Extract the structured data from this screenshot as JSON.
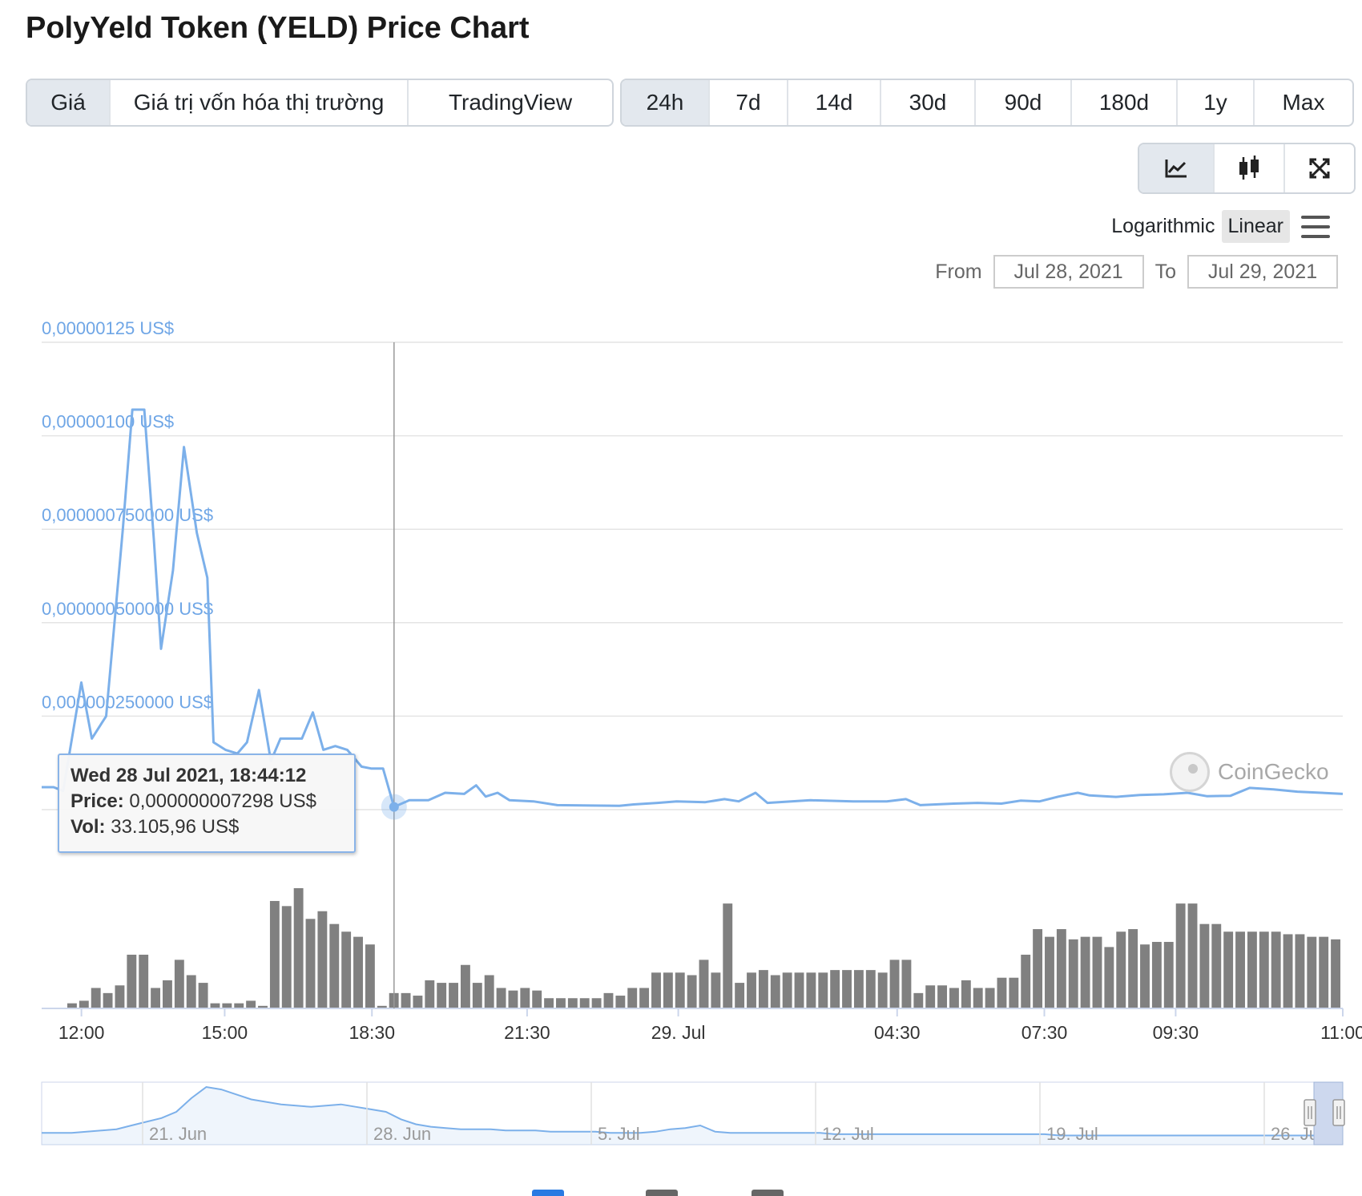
{
  "title": "PolyYeld Token (YELD) Price Chart",
  "tabs": [
    {
      "label": "Giá",
      "active": true
    },
    {
      "label": "Giá trị vốn hóa thị trường",
      "active": false
    },
    {
      "label": "TradingView",
      "active": false
    }
  ],
  "ranges": [
    {
      "label": "24h",
      "active": true
    },
    {
      "label": "7d",
      "active": false
    },
    {
      "label": "14d",
      "active": false
    },
    {
      "label": "30d",
      "active": false
    },
    {
      "label": "90d",
      "active": false
    },
    {
      "label": "180d",
      "active": false
    },
    {
      "label": "1y",
      "active": false
    },
    {
      "label": "Max",
      "active": false
    }
  ],
  "chart_types": [
    {
      "icon": "line-chart-icon",
      "active": true
    },
    {
      "icon": "candlestick-icon",
      "active": false
    },
    {
      "icon": "fullscreen-icon",
      "active": false
    }
  ],
  "scale": {
    "logarithmic": "Logarithmic",
    "linear": "Linear",
    "active": "linear"
  },
  "date_range": {
    "from_label": "From",
    "from_value": "Jul 28, 2021",
    "to_label": "To",
    "to_value": "Jul 29, 2021"
  },
  "tooltip": {
    "title": "Wed 28 Jul 2021, 18:44:12",
    "price_label": "Price:",
    "price_value": "0,000000007298 US$",
    "vol_label": "Vol:",
    "vol_value": "33.105,96 US$"
  },
  "watermark": "CoinGecko",
  "colors": {
    "price_line": "#7cb0ea",
    "volume_bar": "#808080",
    "axis_label": "#6fa6e6",
    "navigator_mask": "#cdd8ee"
  },
  "chart_data": {
    "type": "line",
    "x_unit": "hours since Jul 28, 2021 11:10",
    "ylabel": "",
    "y_ticks": [
      "0,00000125 US$",
      "0,00000100 US$",
      "0,000000750000 US$",
      "0,000000500000 US$",
      "0,000000250000 US$"
    ],
    "y_tick_values": [
      1.25e-06,
      1e-06,
      7.5e-07,
      5e-07,
      2.5e-07
    ],
    "ylim": [
      0,
      1.25e-06
    ],
    "x_ticks": [
      {
        "label": "12:00",
        "x": 0.833
      },
      {
        "label": "15:00",
        "x": 3.833
      },
      {
        "label": "18:30",
        "x": 6.917
      },
      {
        "label": "21:30",
        "x": 10.167
      },
      {
        "label": "29. Jul",
        "x": 13.333
      },
      {
        "label": "04:30",
        "x": 17.917
      },
      {
        "label": "07:30",
        "x": 21.0
      },
      {
        "label": "09:30",
        "x": 23.75
      },
      {
        "label": "11:00",
        "x": 27.25
      }
    ],
    "x_range": [
      0,
      27.25
    ],
    "price_series": {
      "name": "Price",
      "points": [
        [
          0.0,
          6e-08
        ],
        [
          0.25,
          6e-08
        ],
        [
          0.45,
          5e-08
        ],
        [
          0.83,
          3.4e-07
        ],
        [
          1.05,
          1.9e-07
        ],
        [
          1.35,
          2.5e-07
        ],
        [
          1.7,
          7.5e-07
        ],
        [
          1.9,
          1.07e-06
        ],
        [
          2.15,
          1.07e-06
        ],
        [
          2.35,
          7.2e-07
        ],
        [
          2.5,
          4.3e-07
        ],
        [
          2.75,
          6.4e-07
        ],
        [
          2.98,
          9.7e-07
        ],
        [
          3.25,
          7.4e-07
        ],
        [
          3.47,
          6.2e-07
        ],
        [
          3.6,
          1.8e-07
        ],
        [
          3.85,
          1.6e-07
        ],
        [
          4.1,
          1.5e-07
        ],
        [
          4.3,
          1.8e-07
        ],
        [
          4.55,
          3.2e-07
        ],
        [
          4.8,
          1.3e-07
        ],
        [
          5.0,
          1.9e-07
        ],
        [
          5.2,
          1.9e-07
        ],
        [
          5.45,
          1.9e-07
        ],
        [
          5.68,
          2.6e-07
        ],
        [
          5.9,
          1.6e-07
        ],
        [
          6.15,
          1.7e-07
        ],
        [
          6.4,
          1.6e-07
        ],
        [
          6.7,
          1.15e-07
        ],
        [
          6.9,
          1.1e-07
        ],
        [
          7.15,
          1.1e-07
        ],
        [
          7.38,
          7.3e-09
        ],
        [
          7.7,
          2.5e-08
        ],
        [
          8.1,
          2.5e-08
        ],
        [
          8.45,
          4.5e-08
        ],
        [
          8.85,
          4.2e-08
        ],
        [
          9.1,
          6.5e-08
        ],
        [
          9.3,
          3.5e-08
        ],
        [
          9.55,
          4.5e-08
        ],
        [
          9.8,
          2.5e-08
        ],
        [
          10.3,
          2.2e-08
        ],
        [
          10.8,
          1.2e-08
        ],
        [
          11.5,
          1.1e-08
        ],
        [
          12.1,
          1e-08
        ],
        [
          12.4,
          1.4e-08
        ],
        [
          12.9,
          1.8e-08
        ],
        [
          13.3,
          2.2e-08
        ],
        [
          13.9,
          2e-08
        ],
        [
          14.3,
          2.8e-08
        ],
        [
          14.6,
          2.2e-08
        ],
        [
          14.95,
          4.5e-08
        ],
        [
          15.2,
          1.8e-08
        ],
        [
          15.7,
          2.2e-08
        ],
        [
          16.1,
          2.5e-08
        ],
        [
          17.0,
          2.2e-08
        ],
        [
          17.7,
          2.2e-08
        ],
        [
          18.1,
          2.8e-08
        ],
        [
          18.4,
          1.2e-08
        ],
        [
          19.1,
          1.6e-08
        ],
        [
          19.6,
          1.8e-08
        ],
        [
          20.1,
          1.6e-08
        ],
        [
          20.5,
          2.4e-08
        ],
        [
          20.9,
          2.2e-08
        ],
        [
          21.3,
          3.5e-08
        ],
        [
          21.7,
          4.5e-08
        ],
        [
          21.95,
          3.8e-08
        ],
        [
          22.5,
          3.4e-08
        ],
        [
          23.0,
          3.9e-08
        ],
        [
          23.5,
          4.1e-08
        ],
        [
          24.0,
          4.5e-08
        ],
        [
          24.4,
          3.6e-08
        ],
        [
          24.9,
          3.7e-08
        ],
        [
          25.3,
          5.8e-08
        ],
        [
          25.8,
          5.4e-08
        ],
        [
          26.3,
          4.8e-08
        ],
        [
          26.8,
          4.5e-08
        ],
        [
          27.25,
          4.2e-08
        ]
      ]
    },
    "volume_series": {
      "name": "Vol",
      "values": [
        2,
        3,
        8,
        6,
        9,
        21,
        21,
        8,
        11,
        19,
        13,
        10,
        2,
        2,
        2,
        3,
        1,
        42,
        40,
        47,
        35,
        38,
        33,
        30,
        28,
        25,
        1,
        6,
        6,
        5,
        11,
        10,
        10,
        17,
        10,
        13,
        8,
        7,
        8,
        7,
        4,
        4,
        4,
        4,
        4,
        6,
        5,
        8,
        8,
        14,
        14,
        14,
        13,
        19,
        14,
        41,
        10,
        14,
        15,
        13,
        14,
        14,
        14,
        14,
        15,
        15,
        15,
        15,
        14,
        19,
        19,
        6,
        9,
        9,
        8,
        11,
        8,
        8,
        12,
        12,
        21,
        31,
        28,
        31,
        27,
        28,
        28,
        24,
        30,
        31,
        25,
        26,
        26,
        41,
        41,
        33,
        33,
        30,
        30,
        30,
        30,
        30,
        29,
        29,
        28,
        28,
        27
      ]
    },
    "navigator": {
      "x_ticks": [
        "21. Jun",
        "28. Jun",
        "5. Jul",
        "12. Jul",
        "19. Jul",
        "26. Jul"
      ],
      "values": [
        3,
        3,
        3,
        4,
        5,
        6,
        9,
        12,
        15,
        20,
        31,
        40,
        38,
        34,
        30,
        28,
        26,
        25,
        24,
        25,
        26,
        24,
        22,
        20,
        14,
        10,
        8,
        7,
        6,
        6,
        6,
        5,
        5,
        5,
        4,
        4,
        4,
        4,
        3,
        3,
        3,
        4,
        6,
        7,
        9,
        4,
        3,
        3,
        3,
        3,
        3,
        3,
        3,
        2,
        2,
        2,
        2,
        2,
        2,
        2,
        2,
        2,
        2,
        2,
        2,
        2,
        2,
        2,
        1,
        1,
        1,
        1,
        1,
        1,
        1,
        1,
        1,
        1,
        1,
        1,
        1,
        1,
        1,
        1,
        1,
        1
      ]
    }
  }
}
